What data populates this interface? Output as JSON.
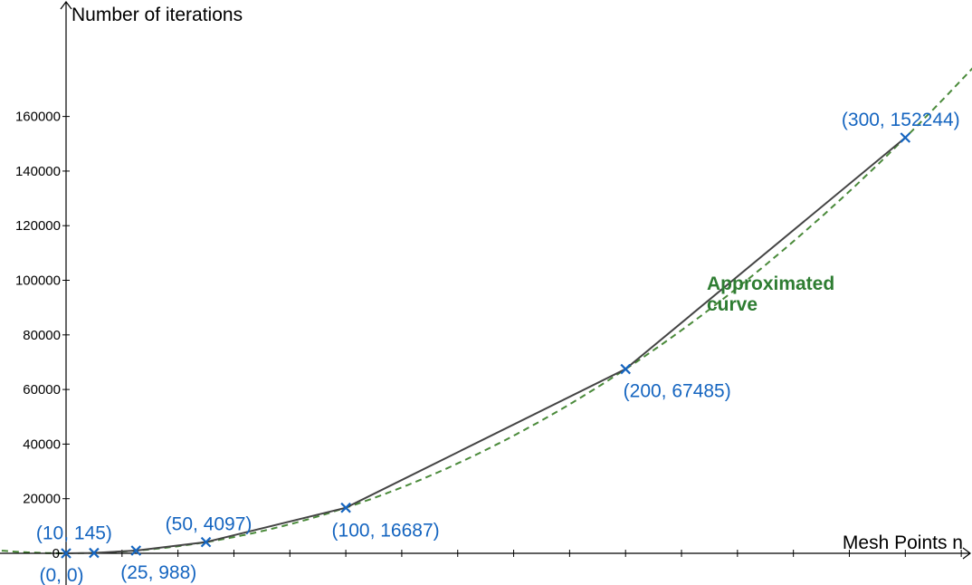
{
  "chart_data": {
    "type": "line",
    "xlabel": "Mesh Points n",
    "ylabel": "Number of iterations",
    "xlim": [
      -23,
      327
    ],
    "ylim": [
      -500,
      170000
    ],
    "y_ticks": [
      0,
      20000,
      40000,
      60000,
      80000,
      100000,
      120000,
      140000,
      160000
    ],
    "x_ticks": [
      20,
      40,
      60,
      80,
      100,
      120,
      140,
      160,
      180,
      200,
      220,
      240,
      260,
      280,
      300,
      320
    ],
    "x_tick_labels_shown": false,
    "grid": false,
    "series": [
      {
        "x": [
          0,
          10,
          25,
          50,
          100,
          200,
          300
        ],
        "y": [
          0,
          145,
          988,
          4097,
          16687,
          67485,
          152244
        ],
        "color": "#444444",
        "marker": "x",
        "marker_color": "#1565c0",
        "point_labels": [
          "(0, 0)",
          "(10, 145)",
          "(25, 988)",
          "(50, 4097)",
          "(100, 16687)",
          "(200, 67485)",
          "(300, 152244)"
        ]
      }
    ],
    "fit_curve": {
      "style": "dashed",
      "color": "#4a8a3a",
      "annotation": [
        "Approximated",
        "curve"
      ],
      "annotation_color": "#2e7d32"
    }
  }
}
